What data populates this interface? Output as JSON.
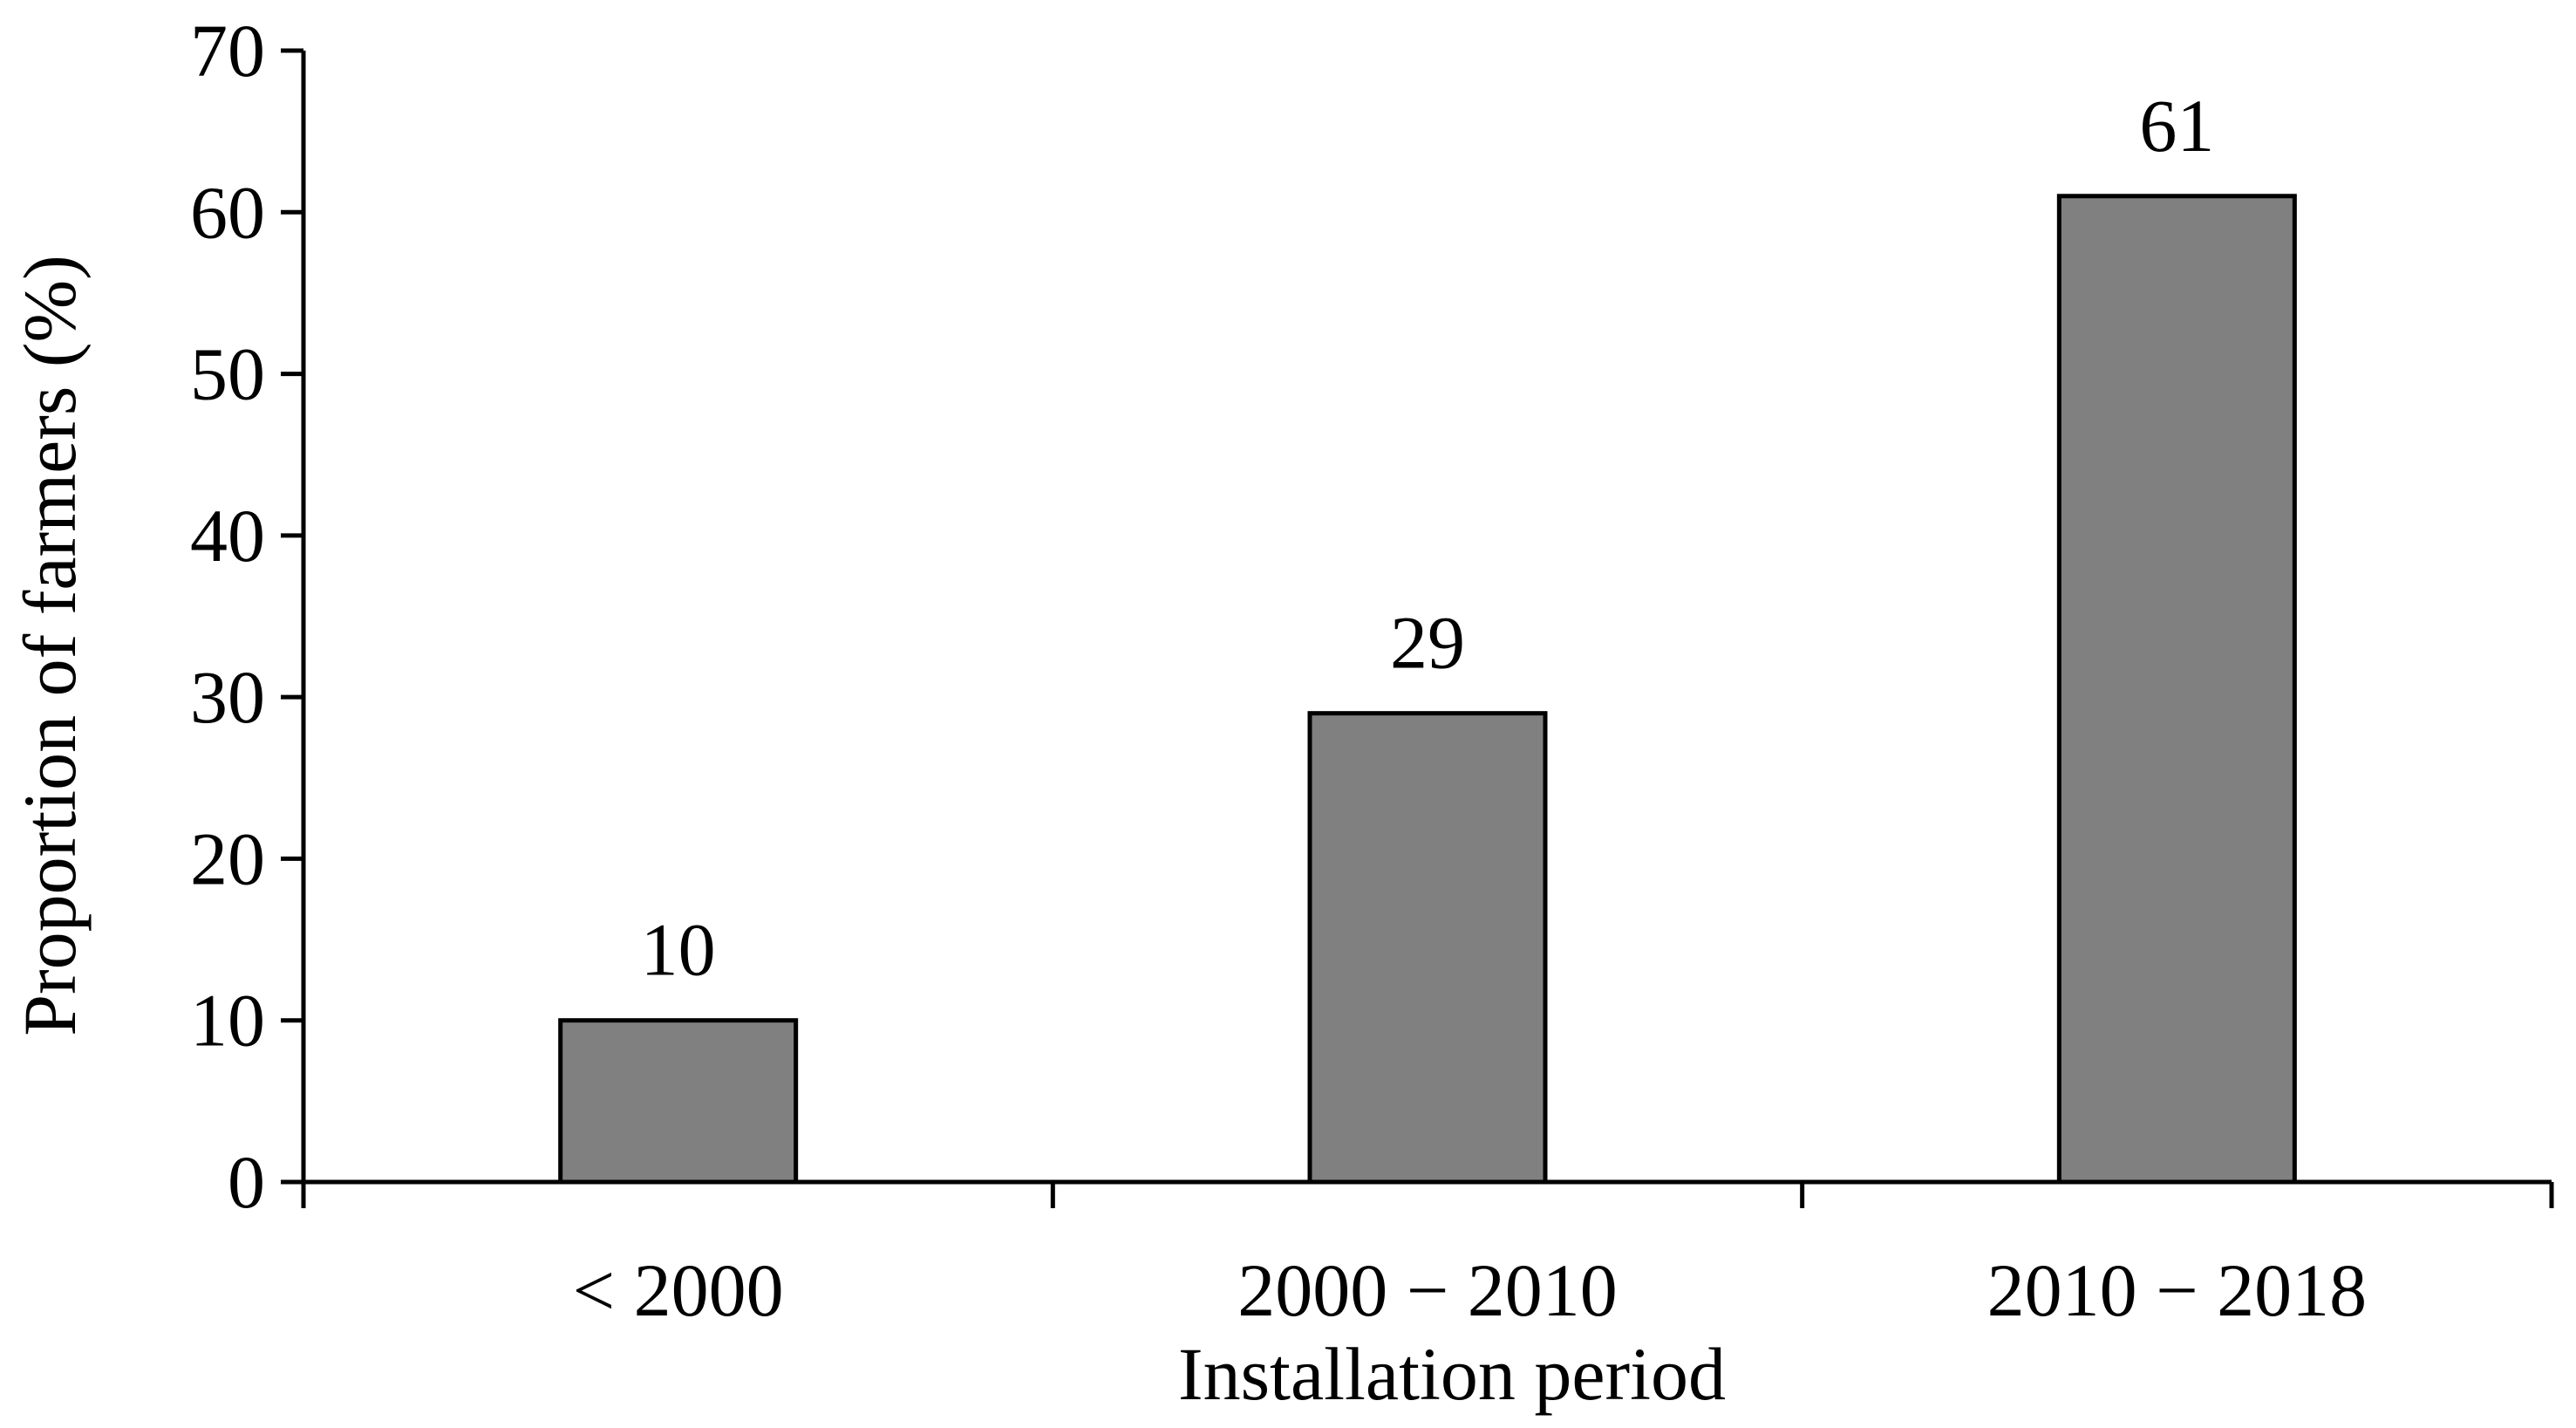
{
  "chart_data": {
    "type": "bar",
    "categories": [
      "< 2000",
      "2000 − 2010",
      "2010 − 2018"
    ],
    "values": [
      10,
      29,
      61
    ],
    "data_labels": [
      "10",
      "29",
      "61"
    ],
    "title": "",
    "xlabel": "Installation period",
    "ylabel": "Proportion of farmers (%)",
    "ylim": [
      0,
      70
    ],
    "yticks": [
      0,
      10,
      20,
      30,
      40,
      50,
      60,
      70
    ],
    "ytick_labels": [
      "0",
      "10",
      "20",
      "30",
      "40",
      "50",
      "60",
      "70"
    ],
    "grid": false,
    "legend": "none",
    "bar_color": "#808080",
    "bar_edge_color": "#000000"
  }
}
